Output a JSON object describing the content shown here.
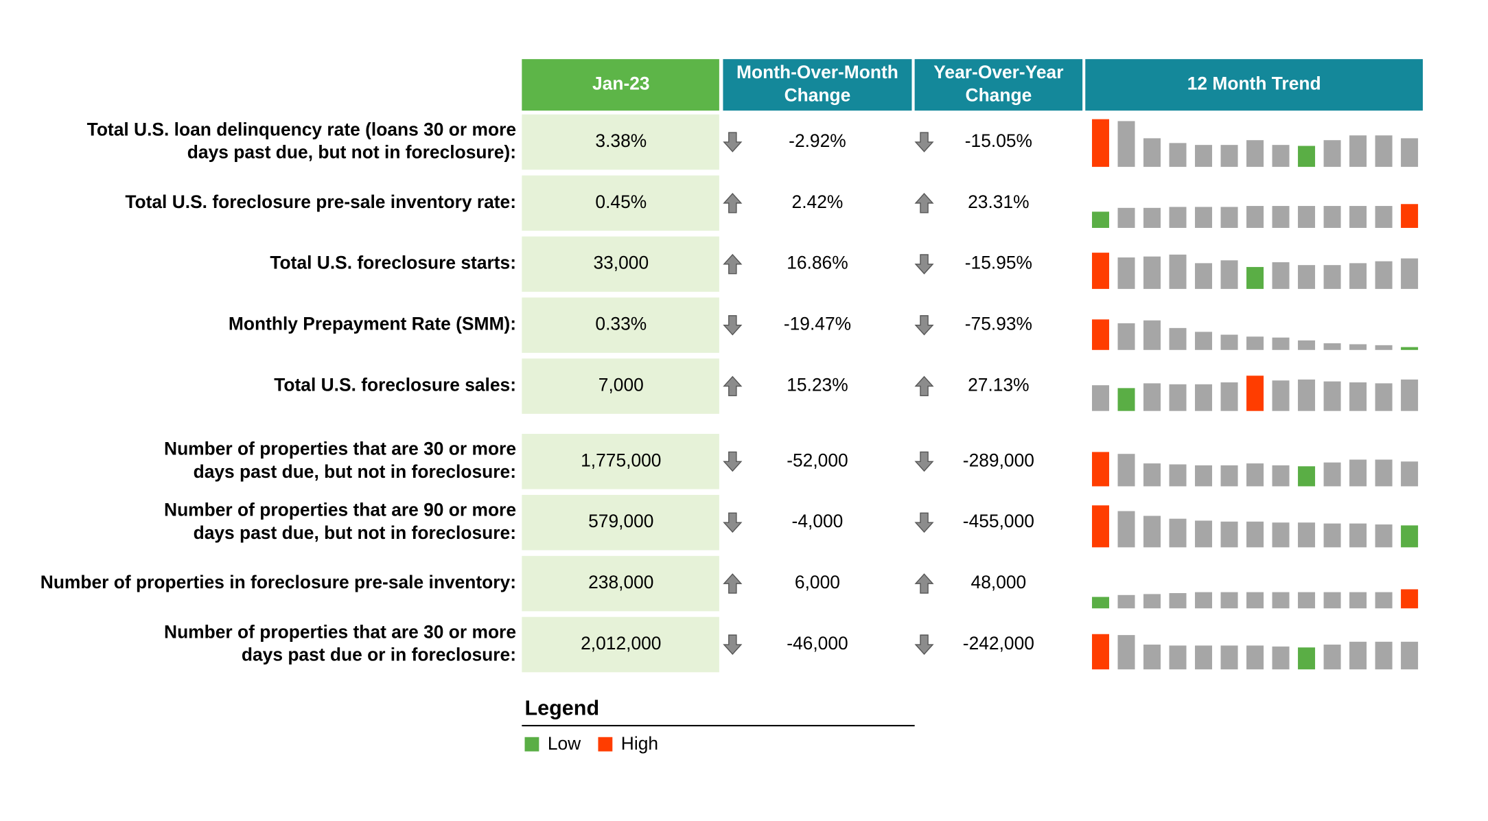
{
  "header": {
    "columns": [
      "Jan-23",
      [
        "Month-Over-Month",
        "Change"
      ],
      [
        "Year-Over-Year",
        "Change"
      ],
      "12 Month Trend"
    ]
  },
  "bar_color": "#a6a6a6",
  "low_color": "#5aae45",
  "high_color": "#ff3d00",
  "rows": [
    {
      "label": [
        "Total U.S. loan delinquency rate (loans 30 or more",
        "days past due, but not in foreclosure):"
      ],
      "value": "3.38%",
      "mom": "-2.92%",
      "yoy": "-15.05%",
      "trend": [
        50,
        48,
        30,
        25,
        23,
        23,
        28,
        23,
        22,
        28,
        33,
        33,
        30
      ]
    },
    {
      "label": [
        "Total U.S. foreclosure pre-sale inventory rate:"
      ],
      "value": "0.45%",
      "mom": "2.42%",
      "yoy": "23.31%",
      "trend": [
        17,
        21,
        21,
        22,
        22,
        22,
        23,
        23,
        23,
        23,
        23,
        23,
        25
      ]
    },
    {
      "label": [
        "Total U.S. foreclosure starts:"
      ],
      "value": "33,000",
      "mom": "16.86%",
      "yoy": "-15.95%",
      "trend": [
        38,
        33,
        34,
        36,
        27,
        30,
        23,
        28,
        25,
        25,
        27,
        29,
        32
      ]
    },
    {
      "label": [
        "Monthly Prepayment Rate (SMM):"
      ],
      "value": "0.33%",
      "mom": "-19.47%",
      "yoy": "-75.93%",
      "trend": [
        32,
        28,
        31,
        23,
        19,
        16,
        14,
        13,
        10,
        7,
        6,
        5,
        3
      ]
    },
    {
      "label": [
        "Total U.S. foreclosure sales:"
      ],
      "value": "7,000",
      "mom": "15.23%",
      "yoy": "27.13%",
      "trend": [
        27,
        24,
        29,
        28,
        28,
        30,
        37,
        32,
        33,
        31,
        30,
        29,
        33
      ]
    },
    {
      "label": [
        "Number of properties that are 30 or more",
        "days past due, but not in foreclosure:"
      ],
      "value": "1,775,000",
      "mom": "-52,000",
      "yoy": "-289,000",
      "trend": [
        36,
        34,
        24,
        23,
        22,
        22,
        24,
        22,
        21,
        25,
        28,
        28,
        26
      ]
    },
    {
      "label": [
        "Number of properties that are 90 or more",
        "days past due, but not in foreclosure:"
      ],
      "value": "579,000",
      "mom": "-4,000",
      "yoy": "-455,000",
      "trend": [
        44,
        38,
        33,
        30,
        28,
        27,
        27,
        26,
        26,
        25,
        25,
        24,
        23
      ]
    },
    {
      "label": [
        "Number of properties in foreclosure pre-sale inventory:"
      ],
      "value": "238,000",
      "mom": "6,000",
      "yoy": "48,000",
      "trend": [
        12,
        14,
        15,
        16,
        17,
        17,
        17,
        17,
        17,
        17,
        17,
        17,
        20
      ]
    },
    {
      "label": [
        "Number of properties that are 30 or more",
        "days past due or in foreclosure:"
      ],
      "value": "2,012,000",
      "mom": "-46,000",
      "yoy": "-242,000",
      "trend": [
        37,
        36,
        26,
        25,
        25,
        25,
        25,
        24,
        23,
        26,
        29,
        29,
        29
      ]
    }
  ],
  "legend": {
    "title": "Legend",
    "items": [
      {
        "label": "Low",
        "color": "#5aae45"
      },
      {
        "label": "High",
        "color": "#ff3d00"
      }
    ]
  }
}
